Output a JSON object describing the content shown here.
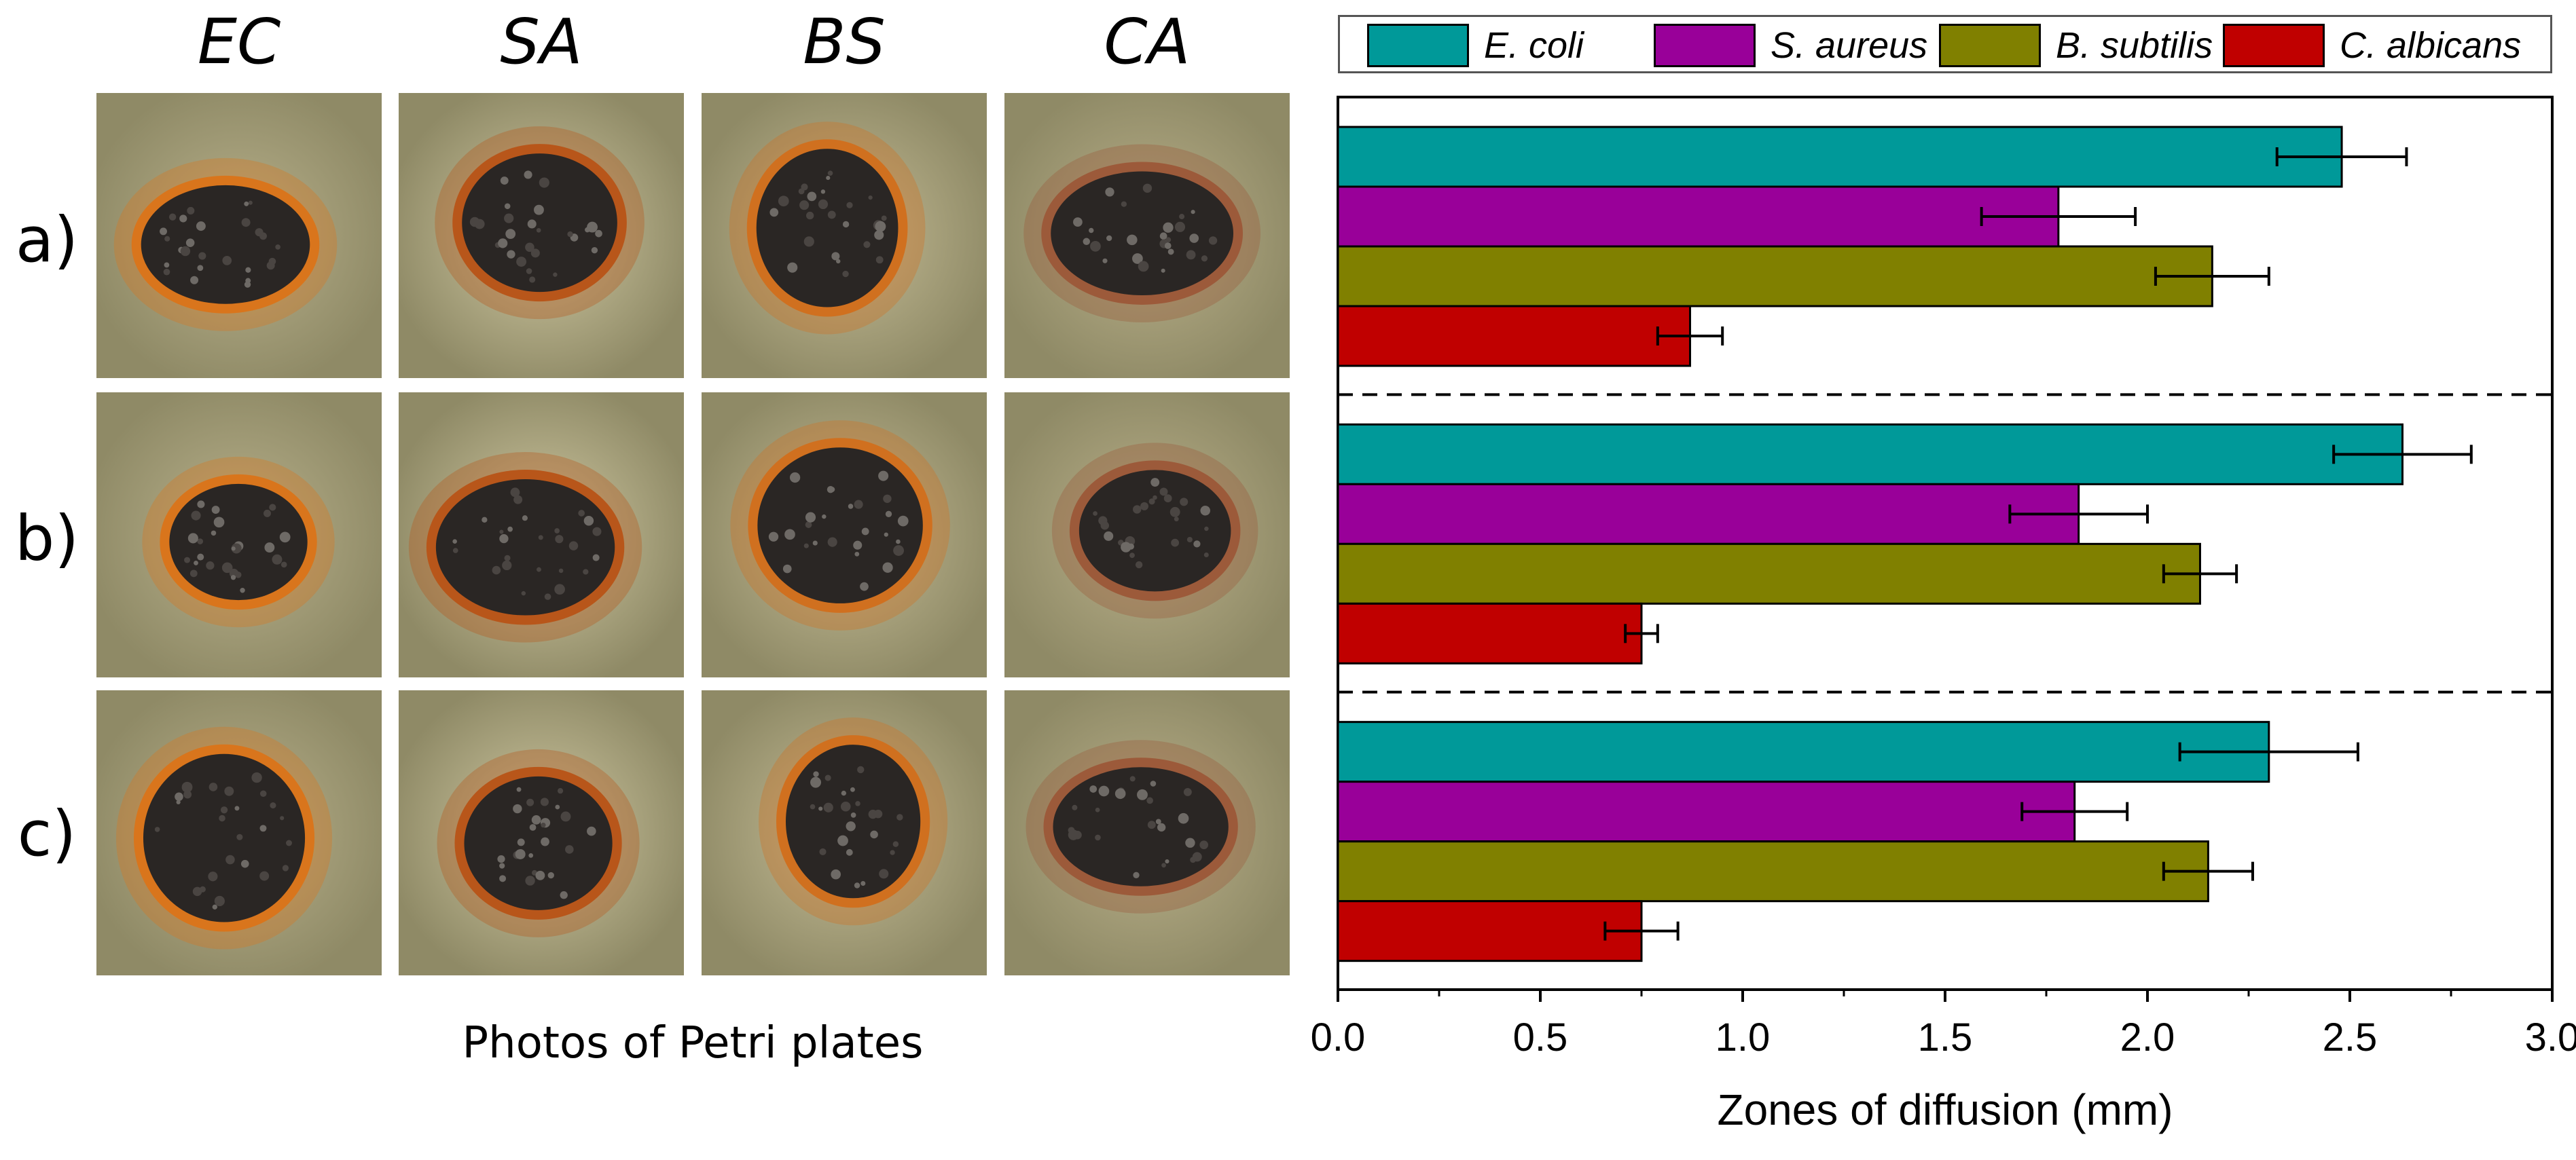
{
  "photos": {
    "column_headers": [
      "EC",
      "SA",
      "BS",
      "CA"
    ],
    "row_labels": [
      "a)",
      "b)",
      "c)"
    ],
    "caption": "Photos of Petri plates"
  },
  "colors": {
    "E. coli": "#009999",
    "S. aureus": "#990099",
    "B. subtilis": "#808000",
    "C. albicans": "#C00000"
  },
  "chart_data": {
    "type": "bar",
    "orientation": "horizontal",
    "groups": [
      "a)",
      "b)",
      "c)"
    ],
    "series": [
      {
        "name": "E. coli",
        "values": [
          2.48,
          2.63,
          2.3
        ],
        "errors": [
          0.16,
          0.17,
          0.22
        ]
      },
      {
        "name": "S. aureus",
        "values": [
          1.78,
          1.83,
          1.82
        ],
        "errors": [
          0.19,
          0.17,
          0.13
        ]
      },
      {
        "name": "B. subtilis",
        "values": [
          2.16,
          2.13,
          2.15
        ],
        "errors": [
          0.14,
          0.09,
          0.11
        ]
      },
      {
        "name": "C. albicans",
        "values": [
          0.87,
          0.75,
          0.75
        ],
        "errors": [
          0.08,
          0.04,
          0.09
        ]
      }
    ],
    "xlabel": "Zones of diffusion (mm)",
    "ylabel": "",
    "xlim": [
      0,
      3.0
    ],
    "xticks": [
      "0.0",
      "0.5",
      "1.0",
      "1.5",
      "2.0",
      "2.5",
      "3.0"
    ],
    "legend_position": "top",
    "group_separators": "dashed",
    "grid": false
  }
}
